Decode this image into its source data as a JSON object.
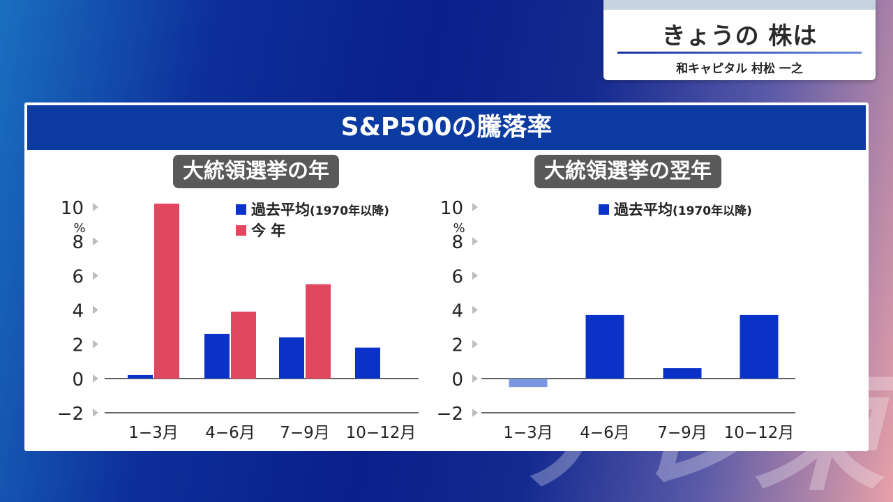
{
  "watermark": "テレ東",
  "header_badge": {
    "title": "きょうの 株は",
    "subtitle": "和キャピタル 村松 一之"
  },
  "panel": {
    "title": "S&P500の騰落率"
  },
  "colors": {
    "past_avg": "#0a32c8",
    "past_avg_negative": "#7a96e0",
    "this_year": "#e3475f",
    "header_blue": "#0b3aa0",
    "subtitle_gray": "#595959"
  },
  "chart_data": [
    {
      "type": "bar",
      "title": "大統領選挙の年",
      "ylabel": "%",
      "ylim": [
        -2,
        10
      ],
      "yticks": [
        "10",
        "8",
        "6",
        "4",
        "2",
        "0",
        "−2"
      ],
      "ytick_values": [
        10,
        8,
        6,
        4,
        2,
        0,
        -2
      ],
      "categories": [
        "1−3月",
        "4−6月",
        "7−9月",
        "10−12月"
      ],
      "legend_position": "top-right",
      "series": [
        {
          "name": "過去平均",
          "name_note": "(1970年以降)",
          "color": "#0a32c8",
          "values": [
            0.2,
            2.6,
            2.4,
            1.8
          ]
        },
        {
          "name": "今 年",
          "name_note": "",
          "color": "#e3475f",
          "values": [
            10.2,
            3.9,
            5.5,
            null
          ]
        }
      ]
    },
    {
      "type": "bar",
      "title": "大統領選挙の翌年",
      "ylabel": "%",
      "ylim": [
        -2,
        10
      ],
      "yticks": [
        "10",
        "8",
        "6",
        "4",
        "2",
        "0",
        "−2"
      ],
      "ytick_values": [
        10,
        8,
        6,
        4,
        2,
        0,
        -2
      ],
      "categories": [
        "1−3月",
        "4−6月",
        "7−9月",
        "10−12月"
      ],
      "legend_position": "top-right",
      "series": [
        {
          "name": "過去平均",
          "name_note": "(1970年以降)",
          "color": "#0a32c8",
          "values": [
            -0.5,
            3.7,
            0.6,
            3.7
          ]
        }
      ]
    }
  ]
}
